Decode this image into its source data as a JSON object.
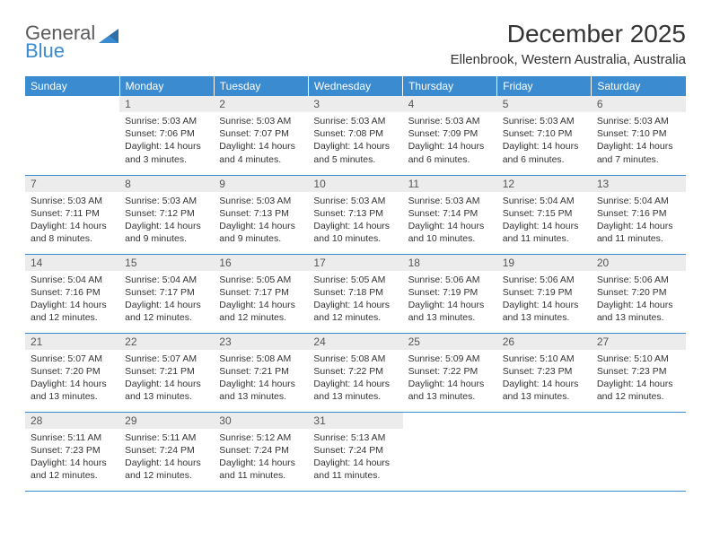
{
  "logo": {
    "name_top": "General",
    "name_bottom": "Blue"
  },
  "title": "December 2025",
  "location": "Ellenbrook, Western Australia, Australia",
  "colors": {
    "header_bg": "#3b8bd0",
    "header_text": "#ffffff",
    "daynum_bg": "#ececec",
    "text": "#333333",
    "row_border": "#3b8bd0"
  },
  "day_headers": [
    "Sunday",
    "Monday",
    "Tuesday",
    "Wednesday",
    "Thursday",
    "Friday",
    "Saturday"
  ],
  "weeks": [
    [
      null,
      {
        "n": "1",
        "sr": "Sunrise: 5:03 AM",
        "ss": "Sunset: 7:06 PM",
        "d1": "Daylight: 14 hours",
        "d2": "and 3 minutes."
      },
      {
        "n": "2",
        "sr": "Sunrise: 5:03 AM",
        "ss": "Sunset: 7:07 PM",
        "d1": "Daylight: 14 hours",
        "d2": "and 4 minutes."
      },
      {
        "n": "3",
        "sr": "Sunrise: 5:03 AM",
        "ss": "Sunset: 7:08 PM",
        "d1": "Daylight: 14 hours",
        "d2": "and 5 minutes."
      },
      {
        "n": "4",
        "sr": "Sunrise: 5:03 AM",
        "ss": "Sunset: 7:09 PM",
        "d1": "Daylight: 14 hours",
        "d2": "and 6 minutes."
      },
      {
        "n": "5",
        "sr": "Sunrise: 5:03 AM",
        "ss": "Sunset: 7:10 PM",
        "d1": "Daylight: 14 hours",
        "d2": "and 6 minutes."
      },
      {
        "n": "6",
        "sr": "Sunrise: 5:03 AM",
        "ss": "Sunset: 7:10 PM",
        "d1": "Daylight: 14 hours",
        "d2": "and 7 minutes."
      }
    ],
    [
      {
        "n": "7",
        "sr": "Sunrise: 5:03 AM",
        "ss": "Sunset: 7:11 PM",
        "d1": "Daylight: 14 hours",
        "d2": "and 8 minutes."
      },
      {
        "n": "8",
        "sr": "Sunrise: 5:03 AM",
        "ss": "Sunset: 7:12 PM",
        "d1": "Daylight: 14 hours",
        "d2": "and 9 minutes."
      },
      {
        "n": "9",
        "sr": "Sunrise: 5:03 AM",
        "ss": "Sunset: 7:13 PM",
        "d1": "Daylight: 14 hours",
        "d2": "and 9 minutes."
      },
      {
        "n": "10",
        "sr": "Sunrise: 5:03 AM",
        "ss": "Sunset: 7:13 PM",
        "d1": "Daylight: 14 hours",
        "d2": "and 10 minutes."
      },
      {
        "n": "11",
        "sr": "Sunrise: 5:03 AM",
        "ss": "Sunset: 7:14 PM",
        "d1": "Daylight: 14 hours",
        "d2": "and 10 minutes."
      },
      {
        "n": "12",
        "sr": "Sunrise: 5:04 AM",
        "ss": "Sunset: 7:15 PM",
        "d1": "Daylight: 14 hours",
        "d2": "and 11 minutes."
      },
      {
        "n": "13",
        "sr": "Sunrise: 5:04 AM",
        "ss": "Sunset: 7:16 PM",
        "d1": "Daylight: 14 hours",
        "d2": "and 11 minutes."
      }
    ],
    [
      {
        "n": "14",
        "sr": "Sunrise: 5:04 AM",
        "ss": "Sunset: 7:16 PM",
        "d1": "Daylight: 14 hours",
        "d2": "and 12 minutes."
      },
      {
        "n": "15",
        "sr": "Sunrise: 5:04 AM",
        "ss": "Sunset: 7:17 PM",
        "d1": "Daylight: 14 hours",
        "d2": "and 12 minutes."
      },
      {
        "n": "16",
        "sr": "Sunrise: 5:05 AM",
        "ss": "Sunset: 7:17 PM",
        "d1": "Daylight: 14 hours",
        "d2": "and 12 minutes."
      },
      {
        "n": "17",
        "sr": "Sunrise: 5:05 AM",
        "ss": "Sunset: 7:18 PM",
        "d1": "Daylight: 14 hours",
        "d2": "and 12 minutes."
      },
      {
        "n": "18",
        "sr": "Sunrise: 5:06 AM",
        "ss": "Sunset: 7:19 PM",
        "d1": "Daylight: 14 hours",
        "d2": "and 13 minutes."
      },
      {
        "n": "19",
        "sr": "Sunrise: 5:06 AM",
        "ss": "Sunset: 7:19 PM",
        "d1": "Daylight: 14 hours",
        "d2": "and 13 minutes."
      },
      {
        "n": "20",
        "sr": "Sunrise: 5:06 AM",
        "ss": "Sunset: 7:20 PM",
        "d1": "Daylight: 14 hours",
        "d2": "and 13 minutes."
      }
    ],
    [
      {
        "n": "21",
        "sr": "Sunrise: 5:07 AM",
        "ss": "Sunset: 7:20 PM",
        "d1": "Daylight: 14 hours",
        "d2": "and 13 minutes."
      },
      {
        "n": "22",
        "sr": "Sunrise: 5:07 AM",
        "ss": "Sunset: 7:21 PM",
        "d1": "Daylight: 14 hours",
        "d2": "and 13 minutes."
      },
      {
        "n": "23",
        "sr": "Sunrise: 5:08 AM",
        "ss": "Sunset: 7:21 PM",
        "d1": "Daylight: 14 hours",
        "d2": "and 13 minutes."
      },
      {
        "n": "24",
        "sr": "Sunrise: 5:08 AM",
        "ss": "Sunset: 7:22 PM",
        "d1": "Daylight: 14 hours",
        "d2": "and 13 minutes."
      },
      {
        "n": "25",
        "sr": "Sunrise: 5:09 AM",
        "ss": "Sunset: 7:22 PM",
        "d1": "Daylight: 14 hours",
        "d2": "and 13 minutes."
      },
      {
        "n": "26",
        "sr": "Sunrise: 5:10 AM",
        "ss": "Sunset: 7:23 PM",
        "d1": "Daylight: 14 hours",
        "d2": "and 13 minutes."
      },
      {
        "n": "27",
        "sr": "Sunrise: 5:10 AM",
        "ss": "Sunset: 7:23 PM",
        "d1": "Daylight: 14 hours",
        "d2": "and 12 minutes."
      }
    ],
    [
      {
        "n": "28",
        "sr": "Sunrise: 5:11 AM",
        "ss": "Sunset: 7:23 PM",
        "d1": "Daylight: 14 hours",
        "d2": "and 12 minutes."
      },
      {
        "n": "29",
        "sr": "Sunrise: 5:11 AM",
        "ss": "Sunset: 7:24 PM",
        "d1": "Daylight: 14 hours",
        "d2": "and 12 minutes."
      },
      {
        "n": "30",
        "sr": "Sunrise: 5:12 AM",
        "ss": "Sunset: 7:24 PM",
        "d1": "Daylight: 14 hours",
        "d2": "and 11 minutes."
      },
      {
        "n": "31",
        "sr": "Sunrise: 5:13 AM",
        "ss": "Sunset: 7:24 PM",
        "d1": "Daylight: 14 hours",
        "d2": "and 11 minutes."
      },
      null,
      null,
      null
    ]
  ]
}
